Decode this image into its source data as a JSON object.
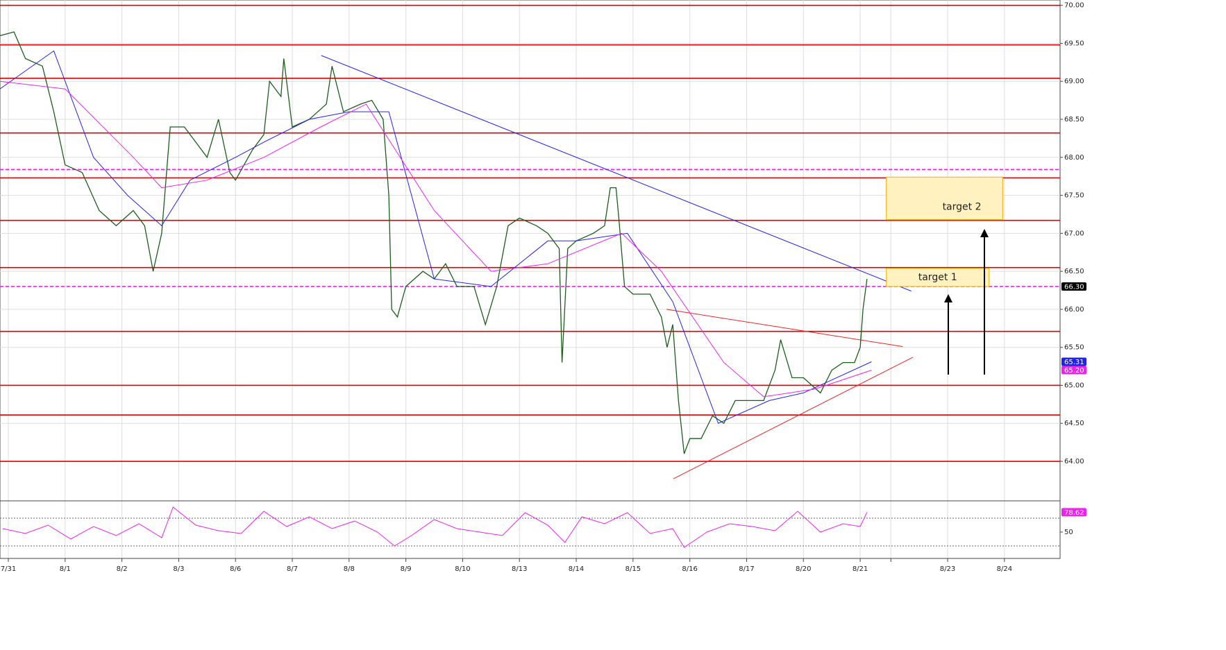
{
  "chart_data": [
    {
      "type": "line",
      "xlim": [
        -0.147,
        18.52
      ],
      "ylim": [
        63.48,
        70.07
      ],
      "xticks": [
        {
          "value": 0,
          "label": "7/31"
        },
        {
          "value": 1,
          "label": "8/1"
        },
        {
          "value": 2,
          "label": "8/2"
        },
        {
          "value": 3,
          "label": "8/3"
        },
        {
          "value": 4,
          "label": "8/6"
        },
        {
          "value": 5,
          "label": "8/7"
        },
        {
          "value": 6,
          "label": "8/8"
        },
        {
          "value": 7,
          "label": "8/9"
        },
        {
          "value": 8,
          "label": "8/10"
        },
        {
          "value": 9,
          "label": "8/13"
        },
        {
          "value": 10,
          "label": "8/14"
        },
        {
          "value": 11,
          "label": "8/15"
        },
        {
          "value": 12,
          "label": "8/16"
        },
        {
          "value": 13,
          "label": "8/17"
        },
        {
          "value": 14,
          "label": "8/20"
        },
        {
          "value": 15,
          "label": "8/21"
        },
        {
          "value": 15.54,
          "label": null
        },
        {
          "value": 16.54,
          "label": "8/23"
        },
        {
          "value": 17.54,
          "label": "8/24"
        }
      ],
      "yticks": [
        {
          "value": 64,
          "label": "64.00"
        },
        {
          "value": 64.5,
          "label": "64.50"
        },
        {
          "value": 65,
          "label": "65.00"
        },
        {
          "value": 65.5,
          "label": "65.50"
        },
        {
          "value": 66,
          "label": "66.00"
        },
        {
          "value": 66.5,
          "label": "66.50"
        },
        {
          "value": 67,
          "label": "67.00"
        },
        {
          "value": 67.5,
          "label": "67.50"
        },
        {
          "value": 68,
          "label": "68.00"
        },
        {
          "value": 68.5,
          "label": "68.50"
        },
        {
          "value": 69,
          "label": "69.00"
        },
        {
          "value": 69.5,
          "label": "69.50"
        },
        {
          "value": 70,
          "label": "70.00"
        }
      ],
      "grid": true,
      "series": [
        {
          "color": "#1a5e1a",
          "width": 1.3,
          "x": [
            -0.15,
            0.1,
            0.3,
            0.6,
            0.8,
            1.0,
            1.3,
            1.6,
            1.9,
            2.2,
            2.4,
            2.55,
            2.7,
            2.85,
            3.1,
            3.3,
            3.5,
            3.7,
            3.9,
            4.0,
            4.3,
            4.5,
            4.6,
            4.8,
            4.85,
            5.0,
            5.3,
            5.6,
            5.7,
            5.9,
            6.2,
            6.4,
            6.6,
            6.7,
            6.75,
            6.85,
            7.0,
            7.3,
            7.5,
            7.7,
            7.9,
            8.2,
            8.4,
            8.6,
            8.8,
            9.0,
            9.3,
            9.5,
            9.7,
            9.75,
            9.85,
            10.0,
            10.3,
            10.5,
            10.6,
            10.7,
            10.75,
            10.85,
            11.0,
            11.3,
            11.5,
            11.6,
            11.7,
            11.8,
            11.9,
            12.0,
            12.2,
            12.4,
            12.6,
            12.8,
            13.0,
            13.3,
            13.5,
            13.6,
            13.8,
            14.0,
            14.3,
            14.5,
            14.7,
            14.9,
            15.0,
            15.05,
            15.12
          ],
          "values": [
            69.6,
            69.65,
            69.3,
            69.2,
            68.6,
            67.9,
            67.8,
            67.3,
            67.1,
            67.3,
            67.1,
            66.5,
            67.0,
            68.4,
            68.4,
            68.2,
            68.0,
            68.5,
            67.8,
            67.7,
            68.1,
            68.3,
            69.0,
            68.8,
            69.3,
            68.4,
            68.5,
            68.7,
            69.2,
            68.6,
            68.7,
            68.75,
            68.5,
            67.5,
            66.0,
            65.9,
            66.3,
            66.5,
            66.4,
            66.6,
            66.3,
            66.3,
            65.8,
            66.3,
            67.1,
            67.2,
            67.1,
            67.0,
            66.8,
            65.3,
            66.8,
            66.9,
            67.0,
            67.1,
            67.6,
            67.6,
            67.2,
            66.3,
            66.2,
            66.2,
            65.9,
            65.5,
            65.8,
            64.8,
            64.1,
            64.3,
            64.3,
            64.6,
            64.5,
            64.8,
            64.8,
            64.8,
            65.2,
            65.6,
            65.1,
            65.1,
            64.9,
            65.2,
            65.3,
            65.3,
            65.5,
            66.0,
            66.4
          ]
        },
        {
          "color": "#2222ee",
          "width": 1,
          "x": [
            -0.15,
            0.8,
            1.5,
            2.1,
            2.7,
            3.2,
            4.0,
            4.5,
            5.3,
            6.0,
            6.7,
            7.5,
            8.5,
            9.5,
            10.0,
            10.9,
            11.7,
            12.5,
            13.4,
            14.0,
            15.2
          ],
          "values": [
            68.9,
            69.4,
            68.0,
            67.5,
            67.1,
            67.7,
            68.0,
            68.2,
            68.5,
            68.6,
            68.6,
            66.4,
            66.3,
            66.9,
            66.9,
            67.0,
            66.1,
            64.5,
            64.8,
            64.9,
            65.31
          ]
        },
        {
          "color": "#ee22ee",
          "width": 1,
          "x": [
            -0.15,
            1.0,
            2.2,
            2.7,
            3.5,
            4.5,
            5.5,
            6.3,
            7.5,
            8.5,
            9.5,
            10.8,
            11.5,
            12.6,
            13.3,
            14.2,
            15.2
          ],
          "values": [
            69.0,
            68.9,
            68.0,
            67.6,
            67.7,
            68.0,
            68.4,
            68.7,
            67.3,
            66.5,
            66.6,
            67.0,
            66.5,
            65.3,
            64.85,
            64.95,
            65.2
          ]
        }
      ],
      "levels": [
        {
          "value": 70.0,
          "color": "#e00000",
          "dash": false
        },
        {
          "value": 69.48,
          "color": "#e00000",
          "dash": false
        },
        {
          "value": 69.04,
          "color": "#e00000",
          "dash": false
        },
        {
          "value": 68.32,
          "color": "#e00000",
          "dash": false
        },
        {
          "value": 67.73,
          "color": "#e00000",
          "dash": false
        },
        {
          "value": 67.17,
          "color": "#e00000",
          "dash": false
        },
        {
          "value": 66.55,
          "color": "#e00000",
          "dash": false
        },
        {
          "value": 65.71,
          "color": "#e00000",
          "dash": false
        },
        {
          "value": 65.0,
          "color": "#e00000",
          "dash": false
        },
        {
          "value": 64.61,
          "color": "#e00000",
          "dash": false
        },
        {
          "value": 64.0,
          "color": "#e00000",
          "dash": false
        },
        {
          "value": 67.84,
          "color": "#ee22ee",
          "dash": true
        },
        {
          "value": 66.3,
          "color": "#ee22ee",
          "dash": true
        }
      ],
      "trendlines": [
        {
          "x": [
            5.51,
            15.9
          ],
          "values": [
            69.34,
            66.24
          ],
          "color": "#2222ee"
        },
        {
          "x": [
            11.59,
            15.75
          ],
          "values": [
            66.0,
            65.51
          ],
          "color": "#ee2222"
        },
        {
          "x": [
            11.71,
            15.93
          ],
          "values": [
            63.77,
            65.37
          ],
          "color": "#ee2222"
        }
      ],
      "targets": [
        {
          "label": "target 1",
          "x": [
            15.46,
            17.27
          ],
          "y": [
            66.3,
            66.54
          ]
        },
        {
          "label": "target 2",
          "x": [
            15.46,
            17.51
          ],
          "y": [
            67.18,
            67.74
          ]
        }
      ],
      "price_tags": [
        {
          "value": 66.3,
          "label": "66.30",
          "color": "#000000"
        },
        {
          "value": 65.31,
          "label": "65.31",
          "color": "#2222ee"
        },
        {
          "value": 65.2,
          "label": "65.20",
          "color": "#ee22ee"
        }
      ]
    },
    {
      "type": "line",
      "xlim": [
        -0.147,
        18.52
      ],
      "ylim": [
        12,
        95
      ],
      "yticks": [
        50
      ],
      "levels": [
        70,
        30
      ],
      "series": [
        {
          "color": "#ee22ee",
          "width": 1,
          "x": [
            -0.1,
            0.3,
            0.7,
            1.1,
            1.5,
            1.9,
            2.3,
            2.7,
            2.9,
            3.3,
            3.7,
            4.1,
            4.5,
            4.9,
            5.3,
            5.7,
            6.1,
            6.5,
            6.8,
            7.1,
            7.5,
            7.9,
            8.3,
            8.7,
            9.1,
            9.5,
            9.8,
            10.1,
            10.5,
            10.9,
            11.3,
            11.7,
            11.9,
            12.3,
            12.7,
            13.1,
            13.5,
            13.9,
            14.3,
            14.7,
            15.0,
            15.12
          ],
          "values": [
            55,
            48,
            60,
            40,
            58,
            45,
            62,
            42,
            86,
            60,
            52,
            48,
            80,
            58,
            72,
            55,
            66,
            50,
            30,
            45,
            68,
            55,
            50,
            45,
            78,
            60,
            35,
            72,
            62,
            78,
            48,
            55,
            28,
            50,
            62,
            58,
            52,
            80,
            50,
            62,
            58,
            78.62
          ]
        }
      ],
      "price_tags": [
        {
          "value": 78.62,
          "label": "78.62",
          "color": "#ee22ee"
        }
      ]
    }
  ]
}
